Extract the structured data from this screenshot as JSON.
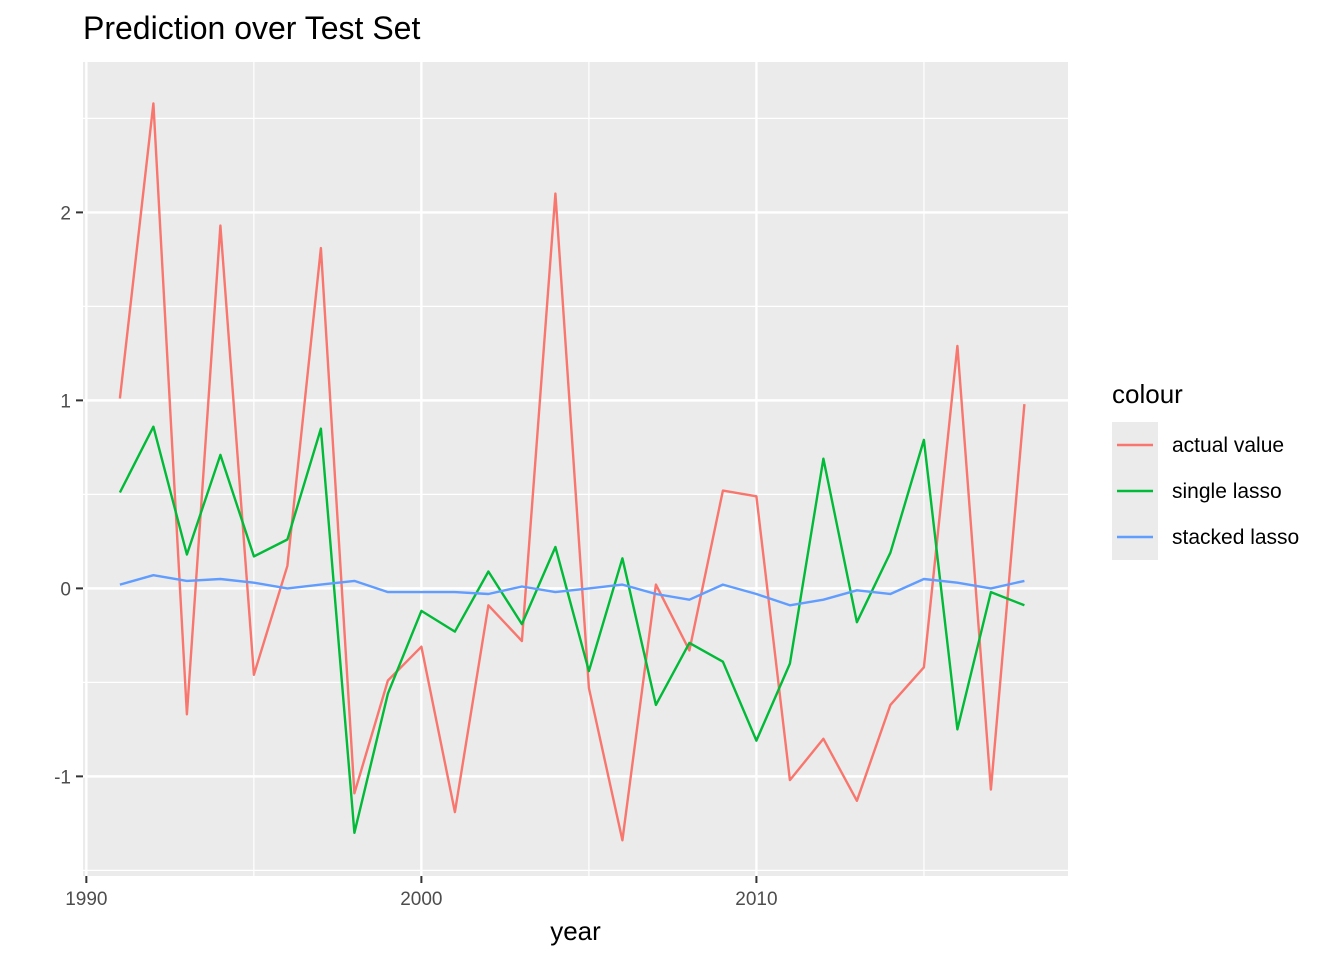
{
  "chart_data": {
    "type": "line",
    "title": "Prediction over Test Set",
    "xlabel": "year",
    "ylabel": "",
    "xlim": [
      1989.9,
      2019.3
    ],
    "ylim": [
      -1.53,
      2.8
    ],
    "x_ticks": [
      1990,
      2000,
      2010
    ],
    "x_tick_labels": [
      "1990",
      "2000",
      "2010"
    ],
    "y_ticks": [
      -1,
      0,
      1,
      2
    ],
    "y_tick_labels": [
      "-1",
      "0",
      "1",
      "2"
    ],
    "grid": true,
    "legend": {
      "title": "colour",
      "position": "right"
    },
    "x": [
      1991,
      1992,
      1993,
      1994,
      1995,
      1996,
      1997,
      1998,
      1999,
      2000,
      2001,
      2002,
      2003,
      2004,
      2005,
      2006,
      2007,
      2008,
      2009,
      2010,
      2011,
      2012,
      2013,
      2014,
      2015,
      2016,
      2017,
      2018
    ],
    "series": [
      {
        "name": "actual value",
        "color": "#F8766D",
        "values": [
          1.01,
          2.58,
          -0.67,
          1.93,
          -0.46,
          0.12,
          1.81,
          -1.09,
          -0.49,
          -0.31,
          -1.19,
          -0.09,
          -0.28,
          2.1,
          -0.53,
          -1.34,
          0.02,
          -0.33,
          0.52,
          0.49,
          -1.02,
          -0.8,
          -1.13,
          -0.62,
          -0.42,
          1.29,
          -1.07,
          0.98
        ]
      },
      {
        "name": "single lasso",
        "color": "#00BA38",
        "values": [
          0.51,
          0.86,
          0.18,
          0.71,
          0.17,
          0.26,
          0.85,
          -1.3,
          -0.56,
          -0.12,
          -0.23,
          0.09,
          -0.19,
          0.22,
          -0.44,
          0.16,
          -0.62,
          -0.29,
          -0.39,
          -0.81,
          -0.4,
          0.69,
          -0.18,
          0.19,
          0.79,
          -0.75,
          -0.02,
          -0.09
        ]
      },
      {
        "name": "stacked lasso",
        "color": "#619CFF",
        "values": [
          0.02,
          0.07,
          0.04,
          0.05,
          0.03,
          0.0,
          0.02,
          0.04,
          -0.02,
          -0.02,
          -0.02,
          -0.03,
          0.01,
          -0.02,
          0.0,
          0.02,
          -0.03,
          -0.06,
          0.02,
          -0.03,
          -0.09,
          -0.06,
          -0.01,
          -0.03,
          0.05,
          0.03,
          0.0,
          0.04
        ]
      }
    ]
  }
}
